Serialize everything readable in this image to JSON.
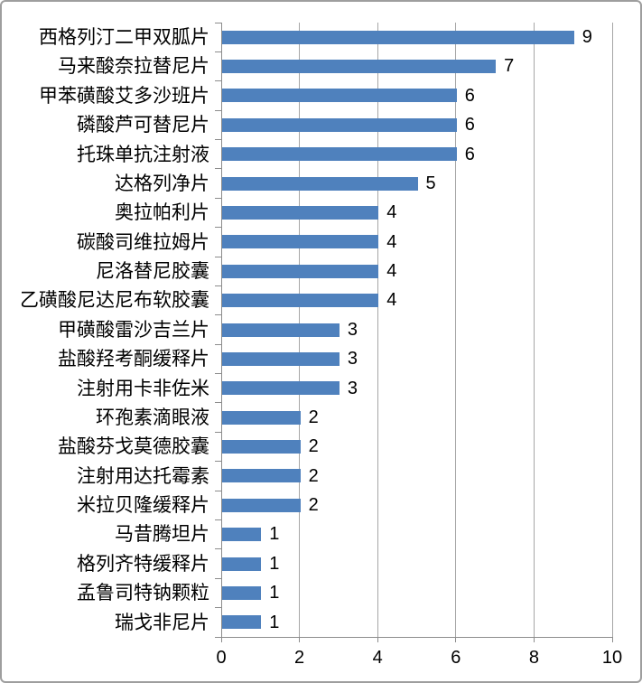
{
  "chart_data": {
    "type": "bar",
    "orientation": "horizontal",
    "title": "",
    "xlabel": "",
    "ylabel": "",
    "categories": [
      "西格列汀二甲双胍片",
      "马来酸奈拉替尼片",
      "甲苯磺酸艾多沙班片",
      "磷酸芦可替尼片",
      "托珠单抗注射液",
      "达格列净片",
      "奥拉帕利片",
      "碳酸司维拉姆片",
      "尼洛替尼胶囊",
      "乙磺酸尼达尼布软胶囊",
      "甲磺酸雷沙吉兰片",
      "盐酸羟考酮缓释片",
      "注射用卡非佐米",
      "环孢素滴眼液",
      "盐酸芬戈莫德胶囊",
      "注射用达托霉素",
      "米拉贝隆缓释片",
      "马昔腾坦片",
      "格列齐特缓释片",
      "孟鲁司特钠颗粒",
      "瑞戈非尼片"
    ],
    "values": [
      9,
      7,
      6,
      6,
      6,
      5,
      4,
      4,
      4,
      4,
      3,
      3,
      3,
      2,
      2,
      2,
      2,
      1,
      1,
      1,
      1
    ],
    "data_labels_shown": true,
    "xlim": [
      0,
      10
    ],
    "x_ticks": [
      0,
      2,
      4,
      6,
      8,
      10
    ],
    "grid": "vertical-major",
    "legend_position": "none",
    "bar_color": "#4F81BD",
    "gridline_color": "#A6A6A6",
    "axis_color": "#8C8C8C",
    "text_color": "#000000"
  }
}
